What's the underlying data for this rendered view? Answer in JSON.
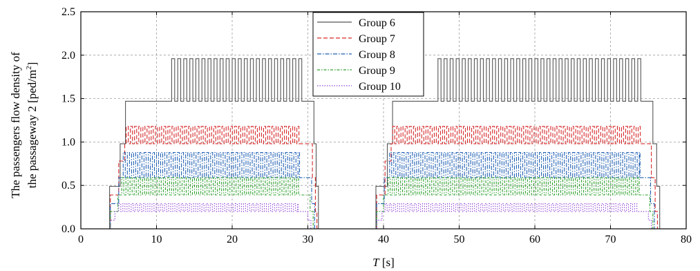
{
  "chart_data": {
    "type": "line",
    "xlabel_var": "T",
    "xlabel_unit": "[s]",
    "ylabel_line1": "The passengers flow density of",
    "ylabel_line2_main": "the passageway 2 [ped/m",
    "ylabel_line2_sup": "2",
    "ylabel_line2_end": "]",
    "xlim": [
      0,
      80
    ],
    "ylim": [
      0,
      2.5
    ],
    "xticks": [
      "0",
      "10",
      "20",
      "30",
      "40",
      "50",
      "60",
      "70",
      "80"
    ],
    "yticks": [
      "0.0",
      "0.5",
      "1.0",
      "1.5",
      "2.0",
      "2.5"
    ],
    "grid": true,
    "legend_position": "top-center",
    "series": [
      {
        "name": "Group 6",
        "color": "#555555",
        "dash": "solid",
        "high": 1.96,
        "low": 1.47,
        "osc_start": 12.0,
        "osc_period": 0.8,
        "cycles": [
          {
            "ramp_up": [
              [
                3.8,
                0.49
              ],
              [
                5.2,
                0.98
              ],
              [
                5.9,
                1.47
              ]
            ],
            "osc_end": 29.3,
            "ramp_down": [
              [
                29.3,
                1.47
              ],
              [
                30.8,
                0.98
              ],
              [
                31.1,
                0.49
              ],
              [
                31.4,
                0.0
              ]
            ]
          },
          {
            "ramp_up": [
              [
                39.0,
                0.49
              ],
              [
                40.5,
                0.98
              ],
              [
                41.2,
                1.47
              ]
            ],
            "osc_end": 74.3,
            "ramp_down": [
              [
                74.3,
                1.47
              ],
              [
                75.6,
                0.98
              ],
              [
                76.1,
                0.49
              ],
              [
                76.5,
                0.0
              ]
            ]
          }
        ]
      },
      {
        "name": "Group 7",
        "color": "#d62728",
        "dash": "6,3",
        "high": 1.18,
        "low": 0.98,
        "osc_start": 6.0,
        "osc_period": 0.55,
        "cycles": [
          {
            "ramp_up": [
              [
                3.9,
                0.39
              ],
              [
                5.0,
                0.78
              ],
              [
                5.8,
                0.98
              ]
            ],
            "osc_end": 29.0,
            "ramp_down": [
              [
                29.0,
                0.98
              ],
              [
                30.6,
                0.59
              ],
              [
                31.0,
                0.2
              ],
              [
                31.2,
                0.0
              ]
            ]
          },
          {
            "ramp_up": [
              [
                39.1,
                0.39
              ],
              [
                40.2,
                0.78
              ],
              [
                41.0,
                0.98
              ]
            ],
            "osc_end": 74.0,
            "ramp_down": [
              [
                74.0,
                0.98
              ],
              [
                75.4,
                0.59
              ],
              [
                75.9,
                0.2
              ],
              [
                76.2,
                0.0
              ]
            ]
          }
        ]
      },
      {
        "name": "Group 8",
        "color": "#1f5fb4",
        "dash": "6,2,1.5,2",
        "high": 0.88,
        "low": 0.59,
        "osc_start": 5.6,
        "osc_period": 0.55,
        "cycles": [
          {
            "ramp_up": [
              [
                3.9,
                0.29
              ],
              [
                5.0,
                0.59
              ]
            ],
            "osc_end": 28.9,
            "ramp_down": [
              [
                28.9,
                0.59
              ],
              [
                30.5,
                0.29
              ],
              [
                30.9,
                0.0
              ]
            ]
          },
          {
            "ramp_up": [
              [
                39.1,
                0.29
              ],
              [
                40.1,
                0.59
              ]
            ],
            "osc_end": 73.9,
            "ramp_down": [
              [
                73.9,
                0.59
              ],
              [
                75.3,
                0.29
              ],
              [
                75.8,
                0.0
              ]
            ]
          }
        ]
      },
      {
        "name": "Group 9",
        "color": "#2ca02c",
        "dash": "4,2,1.5,2",
        "high": 0.59,
        "low": 0.39,
        "osc_start": 5.4,
        "osc_period": 0.55,
        "cycles": [
          {
            "ramp_up": [
              [
                3.9,
                0.2
              ],
              [
                4.9,
                0.39
              ]
            ],
            "osc_end": 28.8,
            "ramp_down": [
              [
                28.8,
                0.39
              ],
              [
                30.3,
                0.2
              ],
              [
                30.7,
                0.0
              ]
            ]
          },
          {
            "ramp_up": [
              [
                39.1,
                0.2
              ],
              [
                40.0,
                0.39
              ]
            ],
            "osc_end": 73.8,
            "ramp_down": [
              [
                73.8,
                0.39
              ],
              [
                75.2,
                0.2
              ],
              [
                75.6,
                0.0
              ]
            ]
          }
        ]
      },
      {
        "name": "Group 10",
        "color": "#8e3fd6",
        "dash": "1.5,2",
        "high": 0.29,
        "low": 0.2,
        "osc_start": 5.0,
        "osc_period": 0.55,
        "cycles": [
          {
            "ramp_up": [
              [
                3.9,
                0.1
              ],
              [
                4.5,
                0.2
              ]
            ],
            "osc_end": 28.7,
            "ramp_down": [
              [
                28.7,
                0.2
              ],
              [
                30.0,
                0.1
              ],
              [
                30.4,
                0.0
              ]
            ]
          },
          {
            "ramp_up": [
              [
                39.1,
                0.1
              ],
              [
                39.8,
                0.2
              ]
            ],
            "osc_end": 73.7,
            "ramp_down": [
              [
                73.7,
                0.2
              ],
              [
                75.0,
                0.1
              ],
              [
                75.4,
                0.0
              ]
            ]
          }
        ]
      }
    ]
  }
}
